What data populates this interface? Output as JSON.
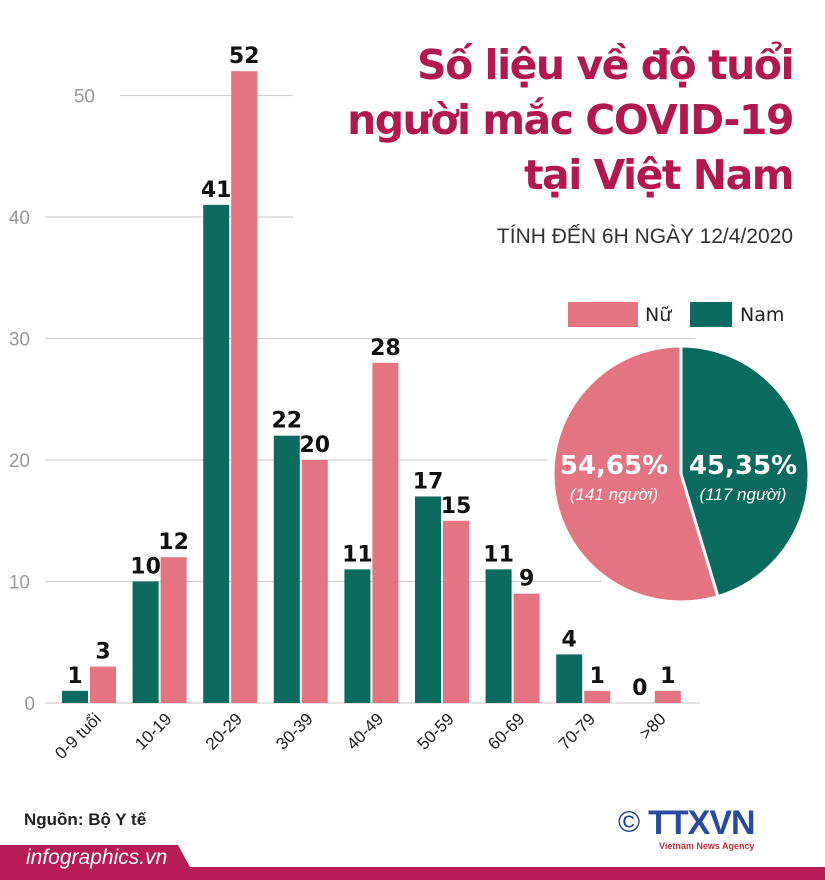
{
  "header": {
    "title_lines": [
      "Số liệu về độ tuổi",
      "người mắc COVID-19",
      "tại Việt Nam"
    ],
    "subtitle": "TÍNH ĐẾN 6H NGÀY 12/4/2020"
  },
  "chart_data": [
    {
      "type": "bar",
      "categories": [
        "0-9 tuổi",
        "10-19",
        "20-29",
        "30-39",
        "40-49",
        "50-59",
        "60-69",
        "70-79",
        ">80"
      ],
      "series": [
        {
          "name": "Nam",
          "color": "#0b6b5f",
          "values": [
            1,
            10,
            41,
            22,
            11,
            17,
            11,
            4,
            0
          ]
        },
        {
          "name": "Nữ",
          "color": "#e57482",
          "values": [
            3,
            12,
            52,
            20,
            28,
            15,
            9,
            1,
            1
          ]
        }
      ],
      "yticks": [
        0,
        10,
        20,
        30,
        40,
        50
      ],
      "ylim": [
        0,
        55
      ],
      "grid": true,
      "legend": "top-right"
    },
    {
      "type": "pie",
      "slices": [
        {
          "name": "Nữ",
          "percent_label": "54,65%",
          "count_label": "(141 người)",
          "value": 141,
          "color": "#e57482"
        },
        {
          "name": "Nam",
          "percent_label": "45,35%",
          "count_label": "(117 người)",
          "value": 117,
          "color": "#0b6b5f"
        }
      ]
    }
  ],
  "legend": {
    "female": "Nữ",
    "male": "Nam"
  },
  "footer": {
    "source": "Nguồn: Bộ Y tế",
    "site": "infographics.vn",
    "logo_text": "TTXVN",
    "logo_sub": "Vietnam News Agency",
    "copyright": "©",
    "band_color": "#b71c56"
  }
}
